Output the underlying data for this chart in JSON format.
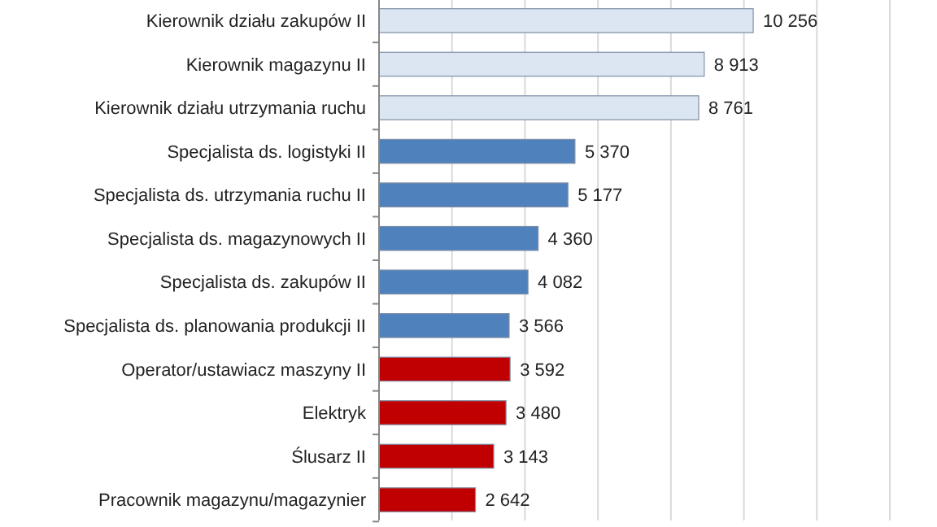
{
  "chart_data": {
    "type": "bar",
    "orientation": "horizontal",
    "categories": [
      "Kierownik działu zakupów II",
      "Kierownik magazynu II",
      "Kierownik działu utrzymania ruchu",
      "Specjalista ds. logistyki II",
      "Specjalista ds. utrzymania ruchu II",
      "Specjalista ds. magazynowych II",
      "Specjalista ds. zakupów II",
      "Specjalista ds. planowania produkcji II",
      "Operator/ustawiacz maszyny II",
      "Elektryk",
      "Ślusarz II",
      "Pracownik magazynu/magazynier"
    ],
    "values": [
      10256,
      8913,
      8761,
      5370,
      5177,
      4360,
      4082,
      3566,
      3592,
      3480,
      3143,
      2642
    ],
    "value_labels": [
      "10 256",
      "8 913",
      "8 761",
      "5 370",
      "5 177",
      "4 360",
      "4 082",
      "3 566",
      "3 592",
      "3 480",
      "3 143",
      "2 642"
    ],
    "colors": [
      "#dce6f2",
      "#dce6f2",
      "#dce6f2",
      "#4f81bd",
      "#4f81bd",
      "#4f81bd",
      "#4f81bd",
      "#4f81bd",
      "#c00000",
      "#c00000",
      "#c00000",
      "#c00000"
    ],
    "xlim": [
      0,
      14000
    ],
    "xticks": [
      {
        "value": 0,
        "label": null
      },
      {
        "value": 2000,
        "label": null
      },
      {
        "value": 4000,
        "label": null
      },
      {
        "value": 6000,
        "label": null
      },
      {
        "value": 8000,
        "label": null
      },
      {
        "value": 10000,
        "label": null
      },
      {
        "value": 12000,
        "label": null
      },
      {
        "value": 14000,
        "label": null
      }
    ],
    "grid": "x",
    "tick_labels": "y"
  }
}
